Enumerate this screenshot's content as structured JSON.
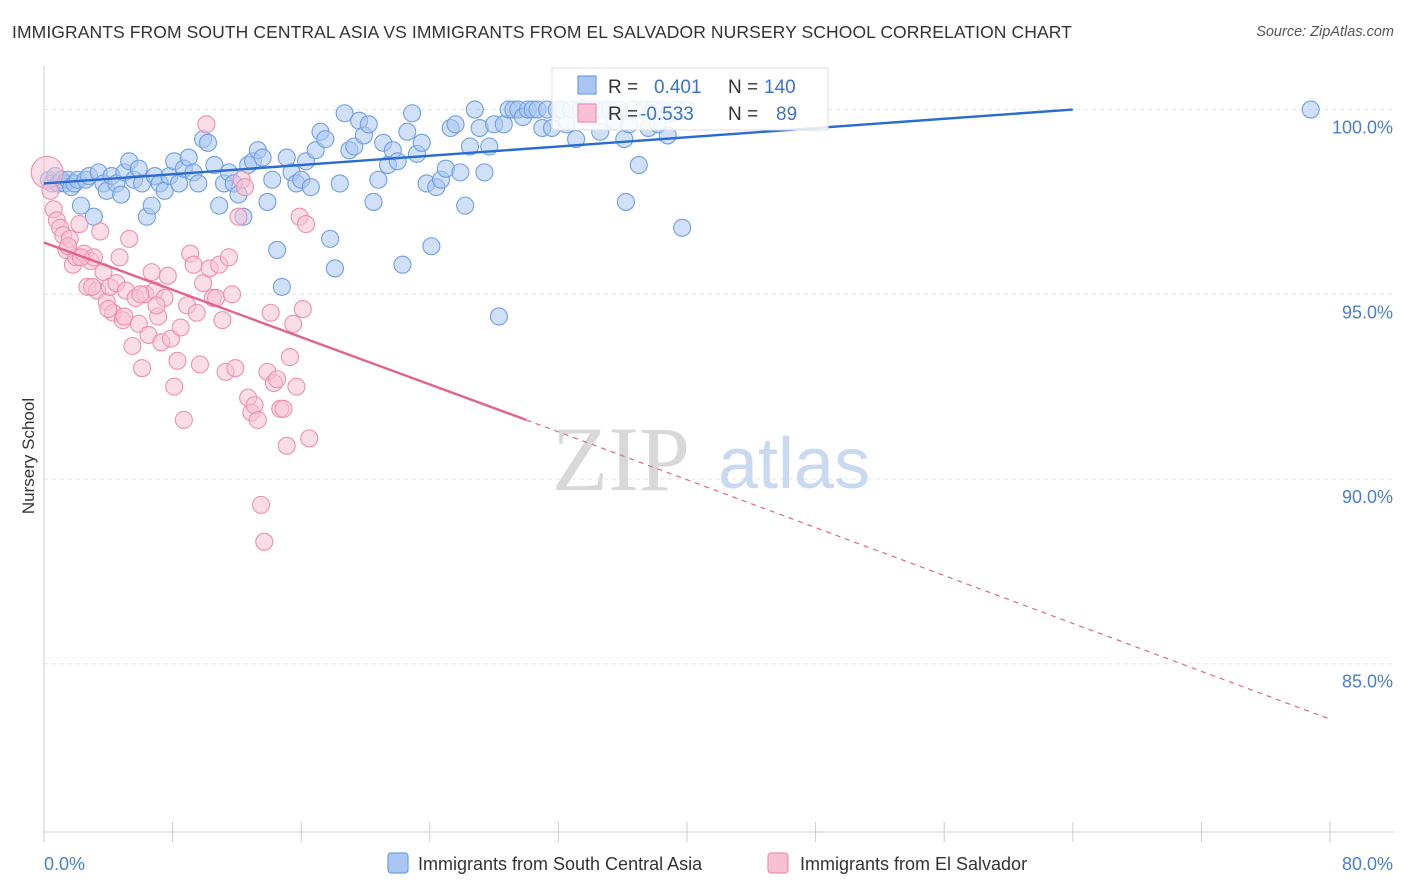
{
  "title": "IMMIGRANTS FROM SOUTH CENTRAL ASIA VS IMMIGRANTS FROM EL SALVADOR NURSERY SCHOOL CORRELATION CHART",
  "source": "Source: ZipAtlas.com",
  "watermark": {
    "zip": "ZIP",
    "atlas": "atlas"
  },
  "colors": {
    "blue": "#6f9fe6",
    "blue_line": "#2a6ccf",
    "pink": "#f08fb0",
    "pink_line": "#e0648f",
    "axis_text": "#4a7fd0",
    "grid": "#e4e4e4"
  },
  "chart_data": {
    "type": "scatter",
    "title": "IMMIGRANTS FROM SOUTH CENTRAL ASIA VS IMMIGRANTS FROM EL SALVADOR NURSERY SCHOOL CORRELATION CHART",
    "xlabel": "",
    "ylabel": "Nursery School",
    "xlim": [
      0,
      80
    ],
    "ylim": [
      80.5,
      100.8
    ],
    "x_tick_labels": [
      "0.0%",
      "80.0%"
    ],
    "y_ticks": [
      85,
      90,
      95,
      100
    ],
    "y_tick_labels": [
      "85.0%",
      "90.0%",
      "95.0%",
      "100.0%"
    ],
    "grid": true,
    "legend_position": "bottom",
    "stats": [
      {
        "r_label": "R =",
        "r_value": "0.401",
        "n_label": "N =",
        "n_value": "140"
      },
      {
        "r_label": "R =",
        "r_value": "-0.533",
        "n_label": "N =",
        "n_value": "89"
      }
    ],
    "series": [
      {
        "name": "Immigrants from South Central Asia",
        "color": "#6f9fe6",
        "trend": {
          "x": [
            0,
            64
          ],
          "y": [
            98.0,
            100.0
          ],
          "dashed_to": null
        },
        "points": [
          [
            0.3,
            98.1
          ],
          [
            0.5,
            98.0
          ],
          [
            0.7,
            98.2
          ],
          [
            0.9,
            98.0
          ],
          [
            1.1,
            98.1
          ],
          [
            1.3,
            98.0
          ],
          [
            1.5,
            98.1
          ],
          [
            1.7,
            97.9
          ],
          [
            1.9,
            98.0
          ],
          [
            2.1,
            98.1
          ],
          [
            2.3,
            97.4
          ],
          [
            2.6,
            98.1
          ],
          [
            2.8,
            98.2
          ],
          [
            3.1,
            97.1
          ],
          [
            3.4,
            98.3
          ],
          [
            3.7,
            98.0
          ],
          [
            3.9,
            97.8
          ],
          [
            4.2,
            98.2
          ],
          [
            4.5,
            98.0
          ],
          [
            4.8,
            97.7
          ],
          [
            5.0,
            98.3
          ],
          [
            5.3,
            98.6
          ],
          [
            5.6,
            98.1
          ],
          [
            5.9,
            98.4
          ],
          [
            6.1,
            98.0
          ],
          [
            6.4,
            97.1
          ],
          [
            6.7,
            97.4
          ],
          [
            6.9,
            98.2
          ],
          [
            7.2,
            98.0
          ],
          [
            7.5,
            97.8
          ],
          [
            7.8,
            98.2
          ],
          [
            8.1,
            98.6
          ],
          [
            8.4,
            98.0
          ],
          [
            8.7,
            98.4
          ],
          [
            9.0,
            98.7
          ],
          [
            9.3,
            98.3
          ],
          [
            9.6,
            98.0
          ],
          [
            9.9,
            99.2
          ],
          [
            10.2,
            99.1
          ],
          [
            10.6,
            98.5
          ],
          [
            10.9,
            97.4
          ],
          [
            11.2,
            98.0
          ],
          [
            11.5,
            98.3
          ],
          [
            11.8,
            98.0
          ],
          [
            12.1,
            97.7
          ],
          [
            12.4,
            97.1
          ],
          [
            12.7,
            98.5
          ],
          [
            13.0,
            98.6
          ],
          [
            13.3,
            98.9
          ],
          [
            13.6,
            98.7
          ],
          [
            13.9,
            97.5
          ],
          [
            14.2,
            98.1
          ],
          [
            14.5,
            96.2
          ],
          [
            14.8,
            95.2
          ],
          [
            15.1,
            98.7
          ],
          [
            15.4,
            98.3
          ],
          [
            15.7,
            98.0
          ],
          [
            16.0,
            98.1
          ],
          [
            16.3,
            98.6
          ],
          [
            16.6,
            97.9
          ],
          [
            16.9,
            98.9
          ],
          [
            17.2,
            99.4
          ],
          [
            17.5,
            99.2
          ],
          [
            17.8,
            96.5
          ],
          [
            18.1,
            95.7
          ],
          [
            18.4,
            98.0
          ],
          [
            18.7,
            99.9
          ],
          [
            19.0,
            98.9
          ],
          [
            19.3,
            99.0
          ],
          [
            19.6,
            99.7
          ],
          [
            19.9,
            99.3
          ],
          [
            20.2,
            99.6
          ],
          [
            20.5,
            97.5
          ],
          [
            20.8,
            98.1
          ],
          [
            21.1,
            99.1
          ],
          [
            21.4,
            98.5
          ],
          [
            21.7,
            98.9
          ],
          [
            22.0,
            98.6
          ],
          [
            22.3,
            95.8
          ],
          [
            22.6,
            99.4
          ],
          [
            22.9,
            99.9
          ],
          [
            23.2,
            98.8
          ],
          [
            23.5,
            99.1
          ],
          [
            23.8,
            98.0
          ],
          [
            24.1,
            96.3
          ],
          [
            24.4,
            97.9
          ],
          [
            24.7,
            98.1
          ],
          [
            25.0,
            98.4
          ],
          [
            25.3,
            99.5
          ],
          [
            25.6,
            99.6
          ],
          [
            25.9,
            98.3
          ],
          [
            26.2,
            97.4
          ],
          [
            26.5,
            99.0
          ],
          [
            26.8,
            100.0
          ],
          [
            27.1,
            99.5
          ],
          [
            27.4,
            98.3
          ],
          [
            27.7,
            99.0
          ],
          [
            28.0,
            99.6
          ],
          [
            28.3,
            94.4
          ],
          [
            28.6,
            99.6
          ],
          [
            28.9,
            100.0
          ],
          [
            29.2,
            100.0
          ],
          [
            29.5,
            100.0
          ],
          [
            29.8,
            99.8
          ],
          [
            30.1,
            100.0
          ],
          [
            30.4,
            100.0
          ],
          [
            30.7,
            100.0
          ],
          [
            31.0,
            99.5
          ],
          [
            31.3,
            100.0
          ],
          [
            31.6,
            99.5
          ],
          [
            31.9,
            100.0
          ],
          [
            32.2,
            100.0
          ],
          [
            32.5,
            99.6
          ],
          [
            32.8,
            100.0
          ],
          [
            33.1,
            99.2
          ],
          [
            33.4,
            100.0
          ],
          [
            33.7,
            100.0
          ],
          [
            34.0,
            99.8
          ],
          [
            34.3,
            100.0
          ],
          [
            34.6,
            99.4
          ],
          [
            34.9,
            100.0
          ],
          [
            35.2,
            100.0
          ],
          [
            35.5,
            99.7
          ],
          [
            35.8,
            100.0
          ],
          [
            36.1,
            99.2
          ],
          [
            36.4,
            99.6
          ],
          [
            36.7,
            100.0
          ],
          [
            37.0,
            98.5
          ],
          [
            37.3,
            100.0
          ],
          [
            37.6,
            99.5
          ],
          [
            37.9,
            100.0
          ],
          [
            38.2,
            99.6
          ],
          [
            38.5,
            100.0
          ],
          [
            38.8,
            99.3
          ],
          [
            36.2,
            97.5
          ],
          [
            39.1,
            99.9
          ],
          [
            39.4,
            100.0
          ],
          [
            39.7,
            96.8
          ],
          [
            40.0,
            100.0
          ],
          [
            78.8,
            100.0
          ]
        ]
      },
      {
        "name": "Immigrants from El Salvador",
        "color": "#f08fb0",
        "trend": {
          "x": [
            0,
            30
          ],
          "y": [
            96.4,
            91.6
          ],
          "dashed_to": [
            80,
            83.5
          ]
        },
        "points": [
          [
            0.2,
            98.3
          ],
          [
            0.4,
            97.8
          ],
          [
            0.6,
            97.3
          ],
          [
            0.8,
            97.0
          ],
          [
            1.0,
            96.8
          ],
          [
            1.2,
            96.6
          ],
          [
            1.4,
            96.2
          ],
          [
            1.6,
            96.5
          ],
          [
            1.8,
            95.8
          ],
          [
            2.0,
            96.0
          ],
          [
            2.2,
            96.9
          ],
          [
            2.5,
            96.1
          ],
          [
            2.7,
            95.2
          ],
          [
            2.9,
            95.9
          ],
          [
            3.1,
            96.0
          ],
          [
            3.3,
            95.1
          ],
          [
            3.5,
            96.7
          ],
          [
            3.7,
            95.6
          ],
          [
            3.9,
            94.8
          ],
          [
            4.1,
            95.2
          ],
          [
            4.3,
            94.5
          ],
          [
            4.5,
            95.3
          ],
          [
            4.7,
            96.0
          ],
          [
            4.9,
            94.3
          ],
          [
            5.1,
            95.1
          ],
          [
            5.3,
            96.5
          ],
          [
            5.5,
            93.6
          ],
          [
            5.7,
            94.9
          ],
          [
            5.9,
            94.2
          ],
          [
            6.1,
            93.0
          ],
          [
            6.3,
            95.0
          ],
          [
            6.5,
            93.9
          ],
          [
            6.7,
            95.6
          ],
          [
            6.9,
            95.1
          ],
          [
            7.1,
            94.4
          ],
          [
            7.3,
            93.7
          ],
          [
            7.5,
            94.9
          ],
          [
            7.7,
            95.5
          ],
          [
            7.9,
            93.8
          ],
          [
            8.1,
            92.5
          ],
          [
            8.3,
            93.2
          ],
          [
            8.5,
            94.1
          ],
          [
            8.7,
            91.6
          ],
          [
            8.9,
            94.7
          ],
          [
            9.1,
            96.1
          ],
          [
            9.3,
            95.8
          ],
          [
            9.5,
            94.5
          ],
          [
            9.7,
            93.1
          ],
          [
            9.9,
            95.3
          ],
          [
            10.1,
            99.6
          ],
          [
            10.3,
            95.7
          ],
          [
            10.5,
            94.9
          ],
          [
            10.7,
            94.9
          ],
          [
            10.9,
            95.8
          ],
          [
            11.1,
            94.3
          ],
          [
            11.3,
            92.9
          ],
          [
            11.5,
            96.0
          ],
          [
            11.7,
            95.0
          ],
          [
            11.9,
            93.0
          ],
          [
            12.1,
            97.1
          ],
          [
            12.3,
            98.1
          ],
          [
            12.5,
            97.9
          ],
          [
            12.7,
            92.2
          ],
          [
            12.9,
            91.8
          ],
          [
            13.1,
            92.0
          ],
          [
            13.3,
            91.6
          ],
          [
            13.5,
            89.3
          ],
          [
            13.7,
            88.3
          ],
          [
            13.9,
            92.9
          ],
          [
            14.1,
            94.5
          ],
          [
            14.3,
            92.6
          ],
          [
            14.5,
            92.7
          ],
          [
            14.7,
            91.9
          ],
          [
            14.9,
            91.9
          ],
          [
            15.1,
            90.9
          ],
          [
            15.3,
            93.3
          ],
          [
            15.5,
            94.2
          ],
          [
            15.7,
            92.5
          ],
          [
            15.9,
            97.1
          ],
          [
            16.1,
            94.6
          ],
          [
            16.3,
            96.9
          ],
          [
            16.5,
            91.1
          ],
          [
            1.5,
            96.3
          ],
          [
            2.3,
            96.0
          ],
          [
            3.0,
            95.2
          ],
          [
            4.0,
            94.6
          ],
          [
            5.0,
            94.4
          ],
          [
            6.0,
            95.0
          ],
          [
            7.0,
            94.7
          ]
        ]
      }
    ]
  }
}
